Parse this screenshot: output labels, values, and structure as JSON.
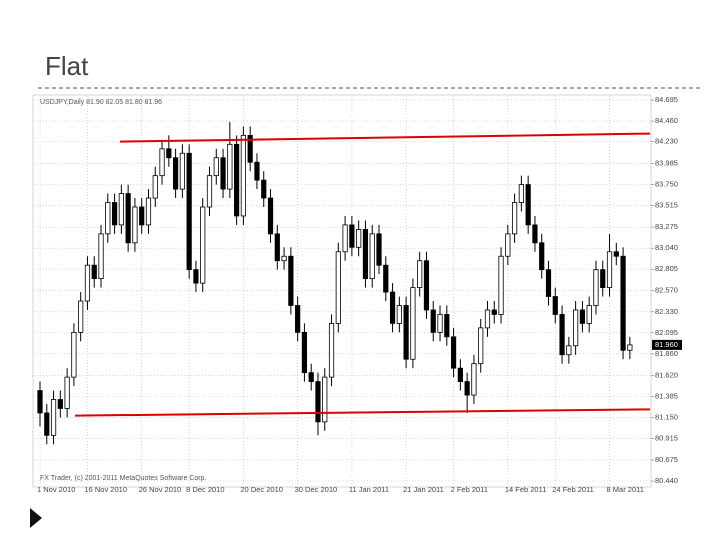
{
  "chart_data": {
    "type": "candlestick",
    "title": "Flat",
    "subtitle": "USDJPY,Daily  81.90 82.05 81.80 81.96",
    "footer": "FX Trader, (c) 2001-2011 MetaQuotes Software Corp.",
    "categories": [
      "1 Nov 2010",
      null,
      null,
      null,
      null,
      null,
      null,
      "16 Nov 2010",
      null,
      null,
      null,
      null,
      null,
      null,
      null,
      "26 Nov 2010",
      null,
      null,
      null,
      null,
      null,
      null,
      "8 Dec 2010",
      null,
      null,
      null,
      null,
      null,
      null,
      null,
      "20 Dec 2010",
      null,
      null,
      null,
      null,
      null,
      null,
      null,
      "30 Dec 2010",
      null,
      null,
      null,
      null,
      null,
      null,
      null,
      "11 Jan 2011",
      null,
      null,
      null,
      null,
      null,
      null,
      null,
      "21 Jan 2011",
      null,
      null,
      null,
      null,
      null,
      null,
      "2 Feb 2011",
      null,
      null,
      null,
      null,
      null,
      null,
      null,
      "14 Feb 2011",
      null,
      null,
      null,
      null,
      null,
      null,
      "24 Feb 2011",
      null,
      null,
      null,
      null,
      null,
      null,
      null,
      "8 Mar 2011",
      null,
      null,
      null
    ],
    "open": [
      81.45,
      81.2,
      80.95,
      81.35,
      81.25,
      81.6,
      82.1,
      82.45,
      82.85,
      82.7,
      83.2,
      83.55,
      83.3,
      83.65,
      83.1,
      83.5,
      83.3,
      83.6,
      83.85,
      84.15,
      84.05,
      83.7,
      84.1,
      82.8,
      82.65,
      83.5,
      83.85,
      84.05,
      83.7,
      84.2,
      83.4,
      84.3,
      84.0,
      83.8,
      83.6,
      83.2,
      82.9,
      82.95,
      82.4,
      82.1,
      81.65,
      81.55,
      81.1,
      81.6,
      82.2,
      83.0,
      83.3,
      83.05,
      83.25,
      82.7,
      83.2,
      82.85,
      82.55,
      82.2,
      82.4,
      81.8,
      82.6,
      82.9,
      82.35,
      82.1,
      82.3,
      82.05,
      81.7,
      81.55,
      81.4,
      81.75,
      82.15,
      82.35,
      82.3,
      82.95,
      83.2,
      83.55,
      83.75,
      83.3,
      83.1,
      82.8,
      82.5,
      82.3,
      81.85,
      81.95,
      82.35,
      82.2,
      82.4,
      82.8,
      82.6,
      83.0,
      82.95,
      81.9
    ],
    "high": [
      81.55,
      81.3,
      81.45,
      81.45,
      81.7,
      82.2,
      82.55,
      82.95,
      82.95,
      83.3,
      83.65,
      83.65,
      83.75,
      83.75,
      83.6,
      83.6,
      83.7,
      83.95,
      84.25,
      84.3,
      84.15,
      84.2,
      84.2,
      82.9,
      83.6,
      83.95,
      84.15,
      84.15,
      84.45,
      84.3,
      84.4,
      84.4,
      84.1,
      83.9,
      83.7,
      83.3,
      83.05,
      83.05,
      82.5,
      82.2,
      81.75,
      81.65,
      81.7,
      82.3,
      83.1,
      83.4,
      83.4,
      83.35,
      83.35,
      83.3,
      83.3,
      82.95,
      82.65,
      82.5,
      82.5,
      82.7,
      83.0,
      83.0,
      82.45,
      82.4,
      82.4,
      82.15,
      81.8,
      81.65,
      81.85,
      82.25,
      82.45,
      82.45,
      83.05,
      83.3,
      83.65,
      83.85,
      83.85,
      83.4,
      83.2,
      82.9,
      82.6,
      82.4,
      82.05,
      82.45,
      82.45,
      82.5,
      82.9,
      82.9,
      83.2,
      83.1,
      83.05,
      82.05
    ],
    "low": [
      81.05,
      80.85,
      80.85,
      81.15,
      81.15,
      81.5,
      82.0,
      82.35,
      82.6,
      82.6,
      83.1,
      83.2,
      83.2,
      83.0,
      83.0,
      83.2,
      83.2,
      83.5,
      83.75,
      83.95,
      83.6,
      83.6,
      82.7,
      82.55,
      82.55,
      83.4,
      83.75,
      83.6,
      83.6,
      83.3,
      83.3,
      83.9,
      83.7,
      83.5,
      83.1,
      82.8,
      82.8,
      82.3,
      82.0,
      81.55,
      81.45,
      80.95,
      81.0,
      81.5,
      82.1,
      82.9,
      82.95,
      82.95,
      82.6,
      82.6,
      82.75,
      82.45,
      82.1,
      82.1,
      81.7,
      81.7,
      82.5,
      82.25,
      82.0,
      82.0,
      81.95,
      81.6,
      81.45,
      81.2,
      81.3,
      81.65,
      82.05,
      82.2,
      82.2,
      82.85,
      83.1,
      83.45,
      83.2,
      83.0,
      82.7,
      82.4,
      82.2,
      81.75,
      81.75,
      81.85,
      82.1,
      82.1,
      82.3,
      82.5,
      82.5,
      82.85,
      81.8,
      81.8
    ],
    "close": [
      81.2,
      80.95,
      81.35,
      81.25,
      81.6,
      82.1,
      82.45,
      82.85,
      82.7,
      83.2,
      83.55,
      83.3,
      83.65,
      83.1,
      83.5,
      83.3,
      83.6,
      83.85,
      84.15,
      84.05,
      83.7,
      84.1,
      82.8,
      82.65,
      83.5,
      83.85,
      84.05,
      83.7,
      84.2,
      83.4,
      84.3,
      84.0,
      83.8,
      83.6,
      83.2,
      82.9,
      82.95,
      82.4,
      82.1,
      81.65,
      81.55,
      81.1,
      81.6,
      82.2,
      83.0,
      83.3,
      83.05,
      83.25,
      82.7,
      83.2,
      82.85,
      82.55,
      82.2,
      82.4,
      81.8,
      82.6,
      82.9,
      82.35,
      82.1,
      82.3,
      82.05,
      81.7,
      81.55,
      81.4,
      81.75,
      82.15,
      82.35,
      82.3,
      82.95,
      83.2,
      83.55,
      83.75,
      83.3,
      83.1,
      82.8,
      82.5,
      82.3,
      81.85,
      81.95,
      82.35,
      82.2,
      82.4,
      82.8,
      82.6,
      83.0,
      82.95,
      81.9,
      81.96
    ],
    "up_color": "#ffffff",
    "down_color": "#000000",
    "ylim": [
      80.44,
      84.695
    ],
    "yticks": [
      {
        "value": 84.695,
        "label": "84.695"
      },
      {
        "value": 84.46,
        "label": "84.460"
      },
      {
        "value": 84.23,
        "label": "84.230"
      },
      {
        "value": 83.985,
        "label": "83.985"
      },
      {
        "value": 83.75,
        "label": "83.750"
      },
      {
        "value": 83.515,
        "label": "83.515"
      },
      {
        "value": 83.275,
        "label": "83.275"
      },
      {
        "value": 83.04,
        "label": "83.040"
      },
      {
        "value": 82.805,
        "label": "82.805"
      },
      {
        "value": 82.57,
        "label": "82.570"
      },
      {
        "value": 82.33,
        "label": "82.330"
      },
      {
        "value": 82.095,
        "label": "82.095"
      },
      {
        "value": 81.86,
        "label": "81.860"
      },
      {
        "value": 81.62,
        "label": "81.620"
      },
      {
        "value": 81.385,
        "label": "81.385"
      },
      {
        "value": 81.15,
        "label": "81.150"
      },
      {
        "value": 80.915,
        "label": "80.915"
      },
      {
        "value": 80.675,
        "label": "80.675"
      },
      {
        "value": 80.44,
        "label": "80.440"
      }
    ],
    "current_price": {
      "value": 81.96,
      "label": "81.960"
    },
    "grid": true,
    "trend_lines": [
      {
        "color": "#dd0000",
        "values": [
          84.23,
          84.32
        ]
      },
      {
        "color": "#dd0000",
        "values": [
          81.17,
          81.24
        ]
      }
    ]
  }
}
